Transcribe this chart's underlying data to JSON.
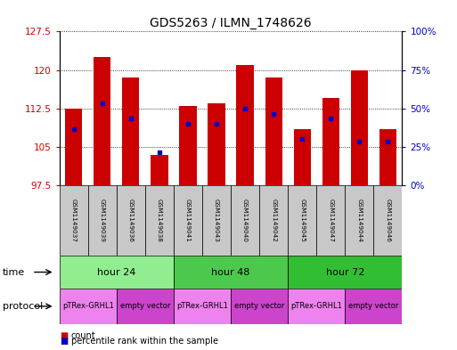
{
  "title": "GDS5263 / ILMN_1748626",
  "samples": [
    "GSM1149037",
    "GSM1149039",
    "GSM1149036",
    "GSM1149038",
    "GSM1149041",
    "GSM1149043",
    "GSM1149040",
    "GSM1149042",
    "GSM1149045",
    "GSM1149047",
    "GSM1149044",
    "GSM1149046"
  ],
  "count_values": [
    112.5,
    122.5,
    118.5,
    103.5,
    113.0,
    113.5,
    121.0,
    118.5,
    108.5,
    114.5,
    120.0,
    108.5
  ],
  "percentile_values": [
    108.5,
    113.5,
    110.5,
    104.0,
    109.5,
    109.5,
    112.5,
    111.5,
    106.5,
    110.5,
    106.0,
    106.0
  ],
  "ymin": 97.5,
  "ymax": 127.5,
  "yticks": [
    97.5,
    105,
    112.5,
    120,
    127.5
  ],
  "right_yticks": [
    0,
    25,
    50,
    75,
    100
  ],
  "time_groups": [
    {
      "label": "hour 24",
      "start": 0,
      "end": 4,
      "color": "#90EE90"
    },
    {
      "label": "hour 48",
      "start": 4,
      "end": 8,
      "color": "#4CC94C"
    },
    {
      "label": "hour 72",
      "start": 8,
      "end": 12,
      "color": "#32BE32"
    }
  ],
  "protocol_groups": [
    {
      "label": "pTRex-GRHL1",
      "start": 0,
      "end": 2,
      "color": "#EE82EE"
    },
    {
      "label": "empty vector",
      "start": 2,
      "end": 4,
      "color": "#CC44CC"
    },
    {
      "label": "pTRex-GRHL1",
      "start": 4,
      "end": 6,
      "color": "#EE82EE"
    },
    {
      "label": "empty vector",
      "start": 6,
      "end": 8,
      "color": "#CC44CC"
    },
    {
      "label": "pTRex-GRHL1",
      "start": 8,
      "end": 10,
      "color": "#EE82EE"
    },
    {
      "label": "empty vector",
      "start": 10,
      "end": 12,
      "color": "#CC44CC"
    }
  ],
  "bar_color": "#CC0000",
  "percentile_color": "#0000CC",
  "bar_width": 0.6,
  "sample_bg_color": "#C8C8C8",
  "left_label_color": "#CC0000",
  "right_label_color": "#0000CC",
  "fig_width": 5.13,
  "fig_height": 3.93,
  "fig_dpi": 100
}
